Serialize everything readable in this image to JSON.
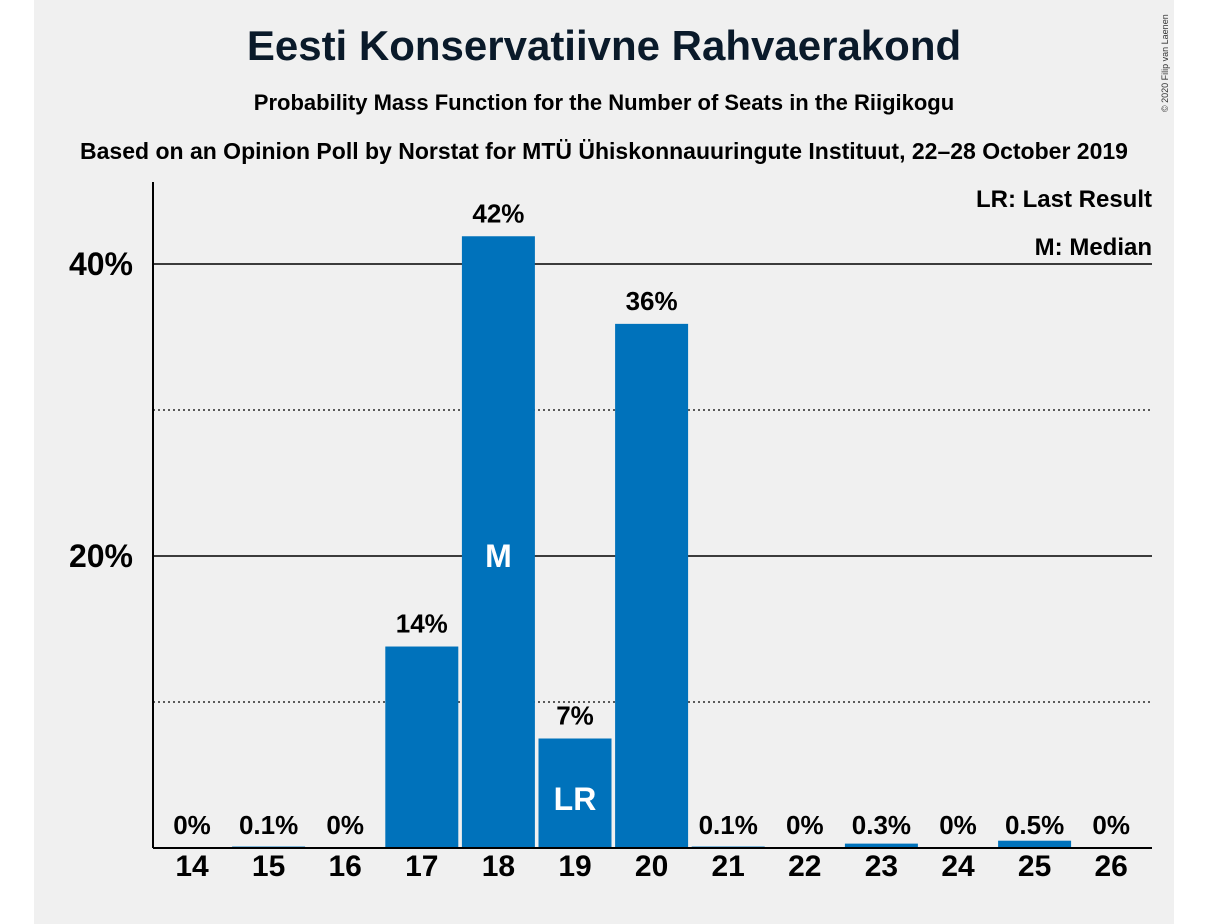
{
  "chart_data": {
    "type": "bar",
    "title": "Eesti Konservatiivne Rahvaerakond",
    "subtitle": "Probability Mass Function for the Number of Seats in the Riigikogu",
    "subtitle2": "Based on an Opinion Poll by Norstat for MTÜ Ühiskonnauuringute Instituut, 22–28 October 2019",
    "copyright": "© 2020 Filip van Laenen",
    "categories": [
      "14",
      "15",
      "16",
      "17",
      "18",
      "19",
      "20",
      "21",
      "22",
      "23",
      "24",
      "25",
      "26"
    ],
    "values": [
      0,
      0.1,
      0,
      13.8,
      41.9,
      7.5,
      35.9,
      0.1,
      0,
      0.3,
      0,
      0.5,
      0
    ],
    "value_labels": [
      "0%",
      "0.1%",
      "0%",
      "14%",
      "42%",
      "7%",
      "36%",
      "0.1%",
      "0%",
      "0.3%",
      "0%",
      "0.5%",
      "0%"
    ],
    "bar_markers": {
      "18": "M",
      "19": "LR"
    },
    "ylim": [
      0,
      45
    ],
    "y_ticks": [
      {
        "value": 20,
        "label": "20%"
      },
      {
        "value": 40,
        "label": "40%"
      }
    ],
    "y_minor_gridlines": [
      10,
      30
    ],
    "legend": {
      "placement": "top-right",
      "items": [
        "LR: Last Result",
        "M: Median"
      ]
    },
    "colors": {
      "bar": "#0072bb",
      "panel_background": "#f0f0f0"
    }
  }
}
